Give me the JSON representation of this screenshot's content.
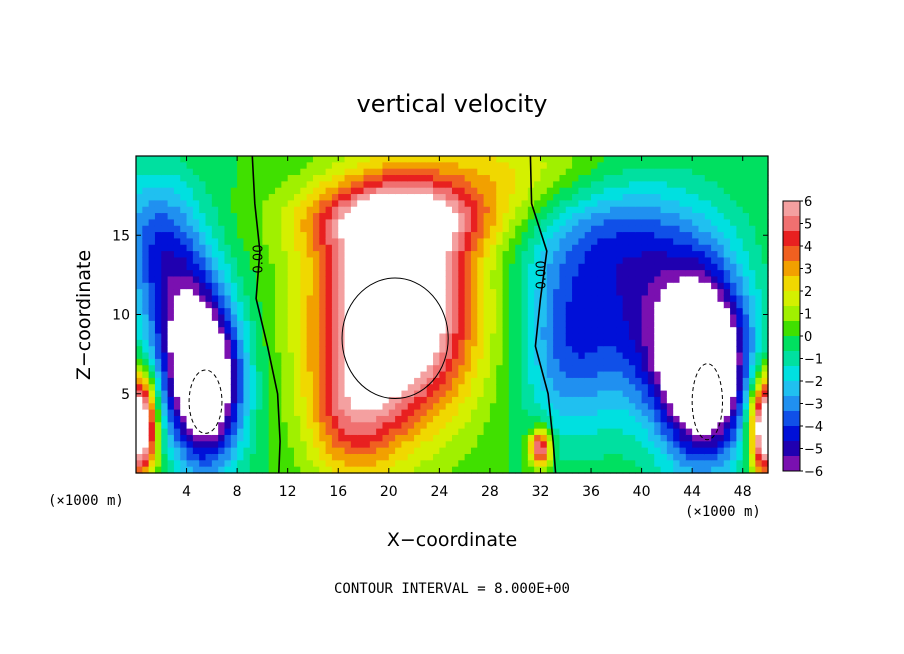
{
  "chart_data": {
    "type": "heatmap",
    "title": "vertical velocity",
    "xlabel": "X−coordinate",
    "ylabel": "Z−coordinate",
    "x_unit": "(×1000 m)",
    "footnote": "CONTOUR INTERVAL = 8.000E+00",
    "xlim": [
      0,
      50
    ],
    "ylim": [
      0,
      20
    ],
    "xticks": [
      4,
      8,
      12,
      16,
      20,
      24,
      28,
      32,
      36,
      40,
      44,
      48
    ],
    "yticks": [
      5,
      10,
      15
    ],
    "contour_labels": [
      "0.00",
      "0.00"
    ],
    "colorbar": {
      "ticks": [
        6,
        5,
        4,
        3,
        2,
        1,
        0,
        -1,
        -2,
        -3,
        -4,
        -5,
        -6
      ],
      "range": [
        -6,
        6
      ],
      "colors": [
        "#f4a0a0",
        "#f07070",
        "#e82020",
        "#f06020",
        "#f2a000",
        "#f0d800",
        "#d4f000",
        "#a0f000",
        "#40e000",
        "#00e060",
        "#00e0a0",
        "#00e0e0",
        "#20c0f0",
        "#2090f0",
        "#1050e8",
        "#0010d8",
        "#2000b0",
        "#7a10b0"
      ]
    },
    "features": [
      {
        "sign": "positive",
        "x": 20.5,
        "z": 10.0,
        "peak": 8
      },
      {
        "sign": "negative",
        "x": 5.5,
        "z": 5.5,
        "peak": -8
      },
      {
        "sign": "negative",
        "x": 45.0,
        "z": 6.5,
        "peak": -8
      },
      {
        "sign": "positive",
        "x": 0.5,
        "z": 3.0,
        "peak": 7
      },
      {
        "sign": "positive",
        "x": 49.5,
        "z": 3.0,
        "peak": 7
      },
      {
        "sign": "positive",
        "x": 32.0,
        "z": 1.5,
        "peak": 5
      }
    ]
  }
}
